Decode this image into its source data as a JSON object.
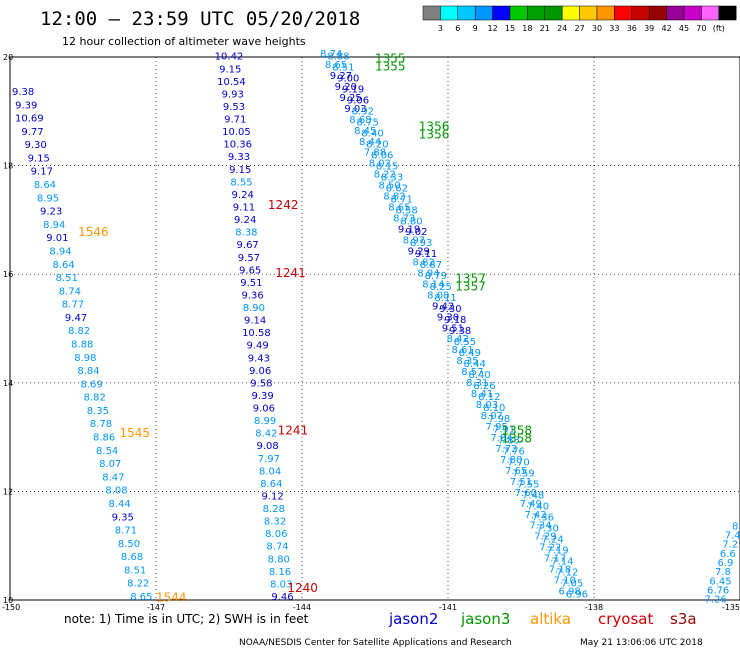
{
  "header": {
    "title": "12:00 – 23:59 UTC 05/20/2018",
    "subtitle": "12 hour collection of altimeter wave heights"
  },
  "scale": {
    "labels": [
      "3",
      "6",
      "9",
      "12",
      "15",
      "18",
      "21",
      "24",
      "27",
      "30",
      "33",
      "36",
      "39",
      "42",
      "45",
      "70",
      "(ft)"
    ],
    "colors": [
      "#808080",
      "#00ffff",
      "#00c8ff",
      "#0096ff",
      "#0000ff",
      "#00c800",
      "#00a000",
      "#009600",
      "#ffff00",
      "#ffc800",
      "#ff9600",
      "#ff0000",
      "#c80000",
      "#960000",
      "#960096",
      "#c800c8",
      "#ff64ff",
      "#000000"
    ]
  },
  "note": "note:  1) Time is in UTC;  2) SWH is in feet",
  "credit": "NOAA/NESDIS Center for Satellite Applications and Research",
  "timestamp": "May 21 13:06:06 UTC 2018",
  "legend": [
    {
      "name": "jason2",
      "color": "#0000cc"
    },
    {
      "name": "jason3",
      "color": "#009600"
    },
    {
      "name": "altika",
      "color": "#ff9600"
    },
    {
      "name": "cryosat",
      "color": "#c80000"
    },
    {
      "name": "s3a",
      "color": "#960000"
    }
  ],
  "chart_data": {
    "type": "scatter",
    "title": "12:00 – 23:59 UTC 05/20/2018",
    "xlabel": "",
    "ylabel": "",
    "xlim": [
      -150,
      -135
    ],
    "ylim": [
      10,
      20
    ],
    "x_ticks": [
      "-150",
      "-147",
      "-144",
      "-141",
      "-138",
      "-135"
    ],
    "y_ticks": [
      "10",
      "12",
      "14",
      "16",
      "18",
      "20"
    ],
    "grid": true,
    "tracks": [
      {
        "satellite": "altika",
        "color": "#0000cc",
        "lon": [
          -149.73,
          -147.3
        ],
        "lat": [
          19.3,
          10.0
        ],
        "values": [
          "9.38",
          "9.39",
          "10.69",
          "9.77",
          "9.30",
          "9.15",
          "9.17",
          "8.64",
          "8.95",
          "9.23",
          "8.94",
          "9.01",
          "8.94",
          "8.64",
          "8.51",
          "8.74",
          "8.77",
          "9.47",
          "8.82",
          "8.88",
          "8.98",
          "8.84",
          "8.69",
          "8.82",
          "8.35",
          "8.78",
          "8.86",
          "8.54",
          "8.07",
          "8.47",
          "8.08",
          "8.44",
          "9.35",
          "8.71",
          "8.50",
          "8.68",
          "8.51",
          "8.22",
          "8.65"
        ]
      },
      {
        "satellite": "cryosat",
        "color": "#0000cc",
        "lon": [
          -145.5,
          -144.4
        ],
        "lat": [
          19.95,
          10.0
        ],
        "values": [
          "10.42",
          "9.15",
          "10.54",
          "9.93",
          "9.53",
          "9.71",
          "10.05",
          "10.36",
          "9.33",
          "9.15",
          "8.55",
          "9.24",
          "9.11",
          "9.24",
          "8.38",
          "9.67",
          "9.57",
          "9.65",
          "9.51",
          "9.36",
          "8.90",
          "9.14",
          "10.58",
          "9.49",
          "9.43",
          "9.06",
          "9.58",
          "9.39",
          "9.06",
          "8.99",
          "8.42",
          "9.08",
          "7.97",
          "8.04",
          "8.64",
          "9.12",
          "8.28",
          "8.32",
          "8.06",
          "8.74",
          "8.80",
          "8.16",
          "8.03",
          "9.46"
        ]
      },
      {
        "satellite": "jason3",
        "color": "#0096ff",
        "lon": [
          -143.4,
          -138.5
        ],
        "lat": [
          20.0,
          10.1
        ],
        "values": [
          "8.74",
          "8.65",
          "9.27",
          "9.20",
          "9.25",
          "9.03",
          "8.68",
          "8.45",
          "8.44",
          "7.88",
          "8.02",
          "8.22",
          "8.50",
          "8.82",
          "8.65",
          "8.73",
          "9.19",
          "8.97",
          "9.29",
          "8.82",
          "8.94",
          "8.14",
          "8.00",
          "9.42",
          "9.30",
          "9.51",
          "8.42",
          "8.61",
          "8.35",
          "8.57",
          "8.31",
          "8.41",
          "8.03",
          "8.07",
          "7.95",
          "7.84",
          "7.72",
          "7.80",
          "7.65",
          "7.51",
          "7.60",
          "7.49",
          "7.42",
          "7.34",
          "7.29",
          "7.22",
          "7.17",
          "7.18",
          "7.10",
          "6.98"
        ]
      },
      {
        "satellite": "jason2",
        "color": "#0096ff",
        "lon": [
          -143.25,
          -138.35
        ],
        "lat": [
          19.95,
          10.05
        ],
        "values": [
          "8.88",
          "8.51",
          "9.00",
          "9.19",
          "9.06",
          "8.92",
          "8.75",
          "8.40",
          "8.20",
          "8.06",
          "8.15",
          "8.33",
          "8.62",
          "8.71",
          "8.58",
          "8.80",
          "9.02",
          "8.93",
          "9.11",
          "8.87",
          "8.79",
          "8.25",
          "8.11",
          "9.30",
          "9.18",
          "9.38",
          "8.55",
          "8.49",
          "8.44",
          "8.40",
          "8.26",
          "8.12",
          "8.10",
          "7.98",
          "7.91",
          "7.83",
          "7.76",
          "7.70",
          "7.59",
          "7.55",
          "7.48",
          "7.40",
          "7.36",
          "7.30",
          "7.24",
          "7.19",
          "7.14",
          "7.12",
          "7.05",
          "6.96"
        ]
      },
      {
        "satellite": "s3a",
        "color": "#0096ff",
        "lon": [
          -135.1,
          -135.5
        ],
        "lat": [
          11.3,
          9.95
        ],
        "values": [
          "8",
          "7.4",
          "7.2",
          "6.6",
          "6.9",
          "7.8",
          "6.45",
          "6.76",
          "7.26"
        ]
      }
    ],
    "revolutions": [
      {
        "label": "1355",
        "color": "#009600",
        "lon": -142.5,
        "lat": 19.9
      },
      {
        "label": "1355",
        "color": "#009600",
        "lon": -142.5,
        "lat": 19.75
      },
      {
        "label": "1356",
        "color": "#009600",
        "lon": -141.6,
        "lat": 18.65
      },
      {
        "label": "1356",
        "color": "#009600",
        "lon": -141.6,
        "lat": 18.5
      },
      {
        "label": "1357",
        "color": "#009600",
        "lon": -140.85,
        "lat": 15.85
      },
      {
        "label": "1357",
        "color": "#009600",
        "lon": -140.85,
        "lat": 15.7
      },
      {
        "label": "1358",
        "color": "#009600",
        "lon": -139.9,
        "lat": 13.05
      },
      {
        "label": "1358",
        "color": "#009600",
        "lon": -139.9,
        "lat": 12.9
      },
      {
        "label": "1242",
        "color": "#c80000",
        "lon": -144.7,
        "lat": 17.2
      },
      {
        "label": "1241",
        "color": "#c80000",
        "lon": -144.55,
        "lat": 15.95
      },
      {
        "label": "1241",
        "color": "#c80000",
        "lon": -144.5,
        "lat": 13.05
      },
      {
        "label": "1240",
        "color": "#c80000",
        "lon": -144.3,
        "lat": 10.15
      },
      {
        "label": "1546",
        "color": "#ff9600",
        "lon": -148.6,
        "lat": 16.7
      },
      {
        "label": "1545",
        "color": "#ff9600",
        "lon": -147.75,
        "lat": 13.0
      },
      {
        "label": "1544",
        "color": "#ff9600",
        "lon": -147.0,
        "lat": 9.97
      }
    ]
  }
}
